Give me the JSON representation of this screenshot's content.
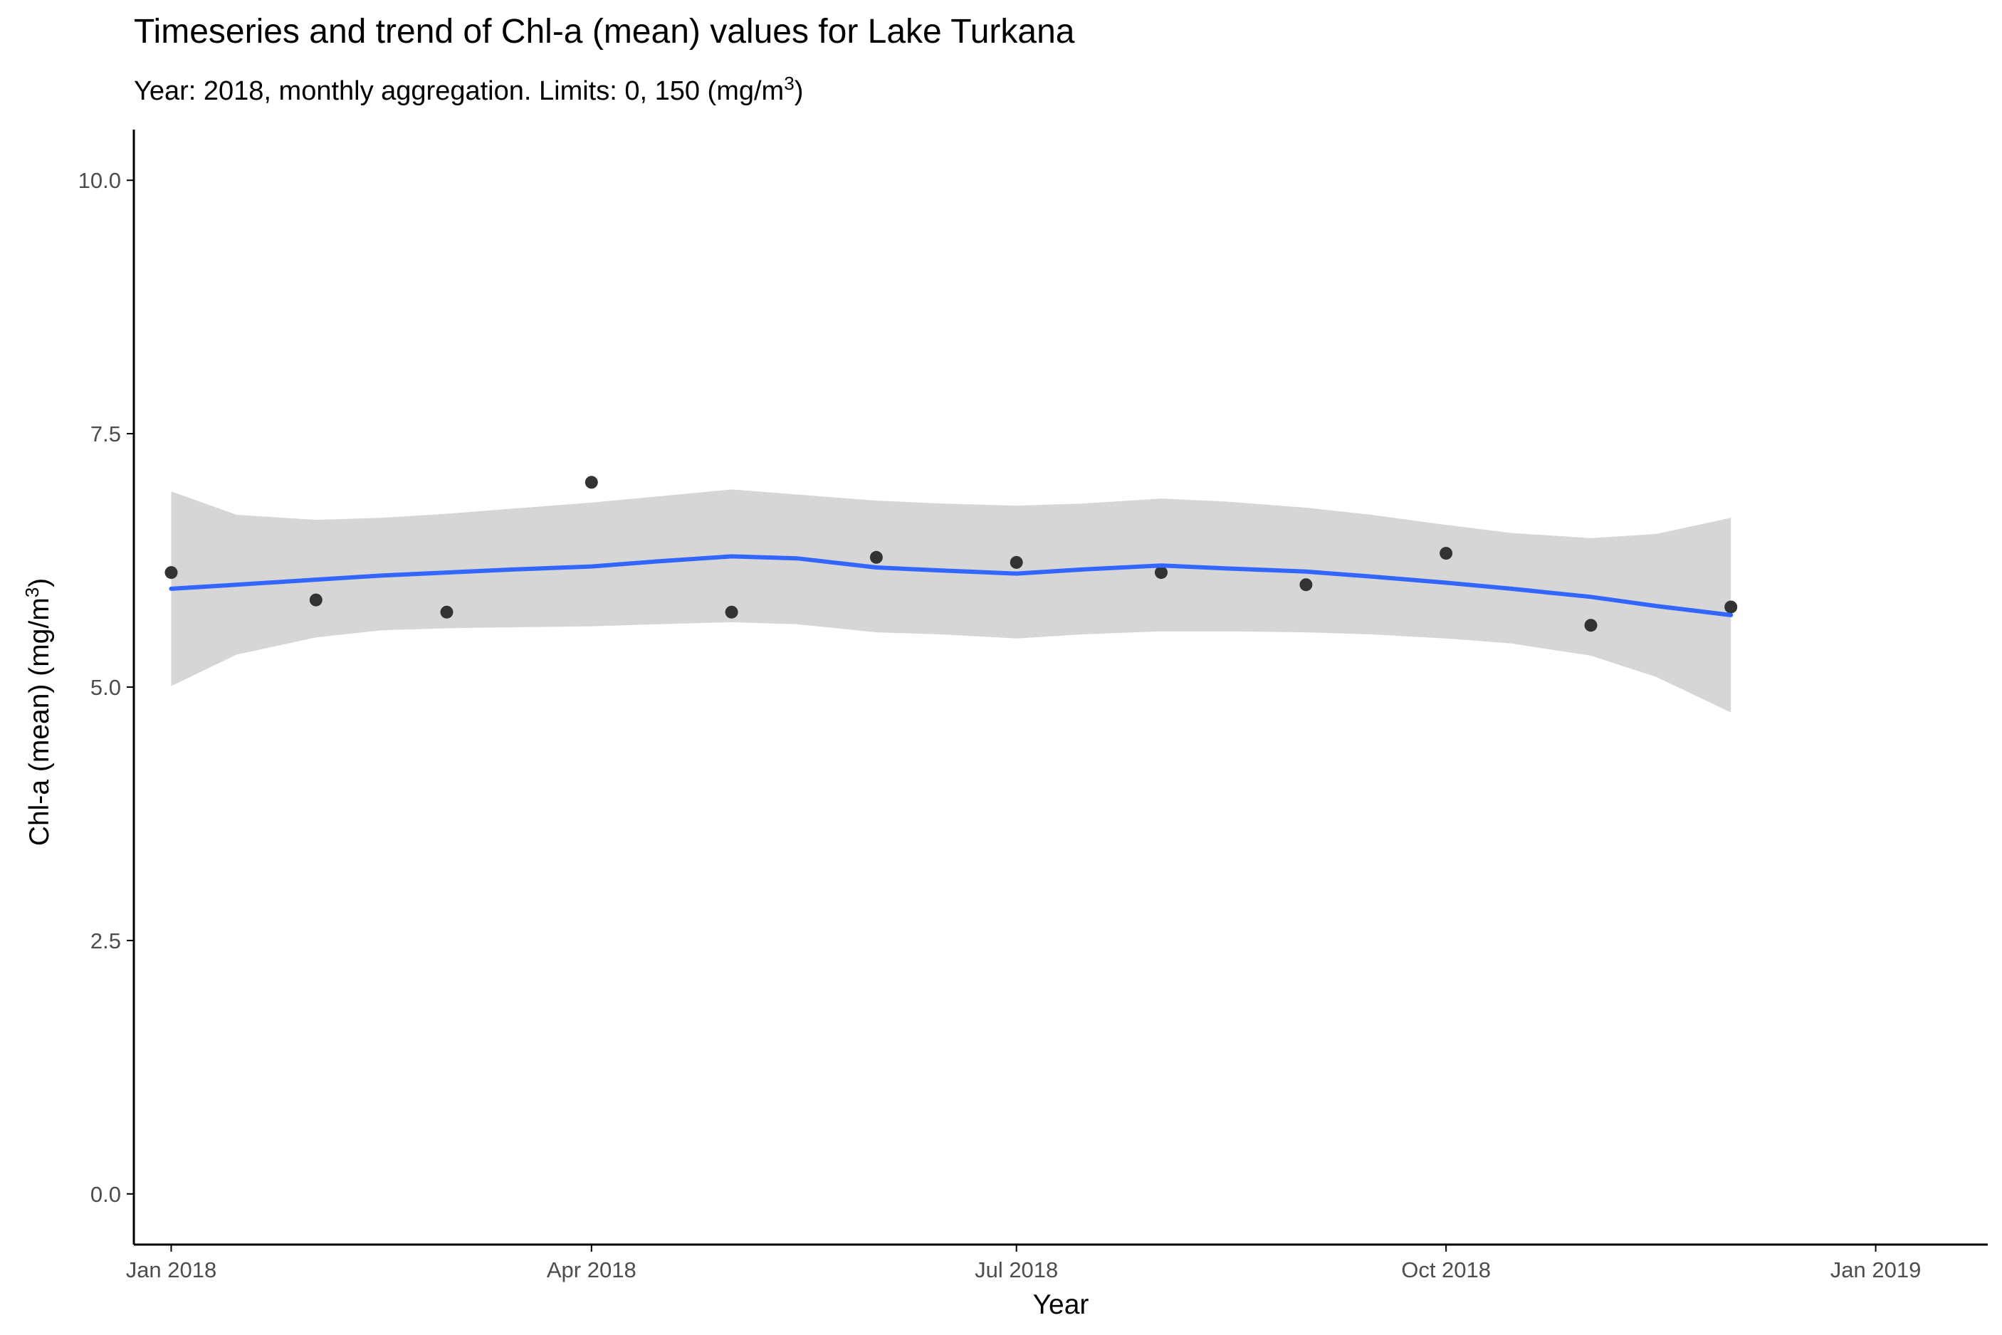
{
  "chart_data": {
    "type": "scatter",
    "title": "Timeseries and trend of Chl-a (mean) values for Lake Turkana",
    "subtitle": {
      "text": "Year: 2018, monthly aggregation. Limits: 0, 150 (mg/m",
      "superscript": "3",
      "suffix": ")"
    },
    "xlabel": "Year",
    "ylabel": {
      "text": "Chl-a (mean) (mg/m",
      "superscript": "3",
      "suffix": ")"
    },
    "xlim": [
      "2017-12-24",
      "2019-01-25"
    ],
    "ylim": [
      -0.5,
      10.5
    ],
    "x_ticks": [
      {
        "date": "2018-01-01",
        "label": "Jan 2018"
      },
      {
        "date": "2018-04-01",
        "label": "Apr 2018"
      },
      {
        "date": "2018-07-01",
        "label": "Jul 2018"
      },
      {
        "date": "2018-10-01",
        "label": "Oct 2018"
      },
      {
        "date": "2019-01-01",
        "label": "Jan 2019"
      }
    ],
    "y_ticks": [
      {
        "value": 0.0,
        "label": "0.0"
      },
      {
        "value": 2.5,
        "label": "2.5"
      },
      {
        "value": 5.0,
        "label": "5.0"
      },
      {
        "value": 7.5,
        "label": "7.5"
      },
      {
        "value": 10.0,
        "label": "10.0"
      }
    ],
    "grid": false,
    "points": {
      "x": [
        "2018-01-01",
        "2018-02-01",
        "2018-03-01",
        "2018-04-01",
        "2018-05-01",
        "2018-06-01",
        "2018-07-01",
        "2018-08-01",
        "2018-09-01",
        "2018-10-01",
        "2018-11-01",
        "2018-12-01"
      ],
      "y": [
        6.13,
        5.86,
        5.74,
        7.02,
        5.74,
        6.28,
        6.23,
        6.13,
        6.01,
        6.32,
        5.61,
        5.79
      ]
    },
    "trend": {
      "x": [
        "2018-01-01",
        "2018-01-15",
        "2018-02-01",
        "2018-02-15",
        "2018-03-01",
        "2018-03-15",
        "2018-04-01",
        "2018-04-15",
        "2018-05-01",
        "2018-05-15",
        "2018-06-01",
        "2018-06-15",
        "2018-07-01",
        "2018-07-15",
        "2018-08-01",
        "2018-08-15",
        "2018-09-01",
        "2018-09-15",
        "2018-10-01",
        "2018-10-15",
        "2018-11-01",
        "2018-11-15",
        "2018-12-01"
      ],
      "y": [
        5.97,
        6.01,
        6.06,
        6.1,
        6.13,
        6.16,
        6.19,
        6.24,
        6.29,
        6.27,
        6.18,
        6.15,
        6.12,
        6.16,
        6.2,
        6.17,
        6.14,
        6.09,
        6.03,
        5.97,
        5.89,
        5.8,
        5.71
      ],
      "lower": [
        5.01,
        5.32,
        5.49,
        5.56,
        5.58,
        5.59,
        5.6,
        5.62,
        5.64,
        5.62,
        5.54,
        5.52,
        5.48,
        5.52,
        5.55,
        5.55,
        5.54,
        5.52,
        5.48,
        5.43,
        5.31,
        5.1,
        4.75
      ],
      "upper": [
        6.93,
        6.7,
        6.65,
        6.67,
        6.71,
        6.76,
        6.82,
        6.88,
        6.95,
        6.9,
        6.84,
        6.81,
        6.79,
        6.81,
        6.86,
        6.83,
        6.77,
        6.7,
        6.6,
        6.52,
        6.47,
        6.51,
        6.67
      ]
    },
    "colors": {
      "point": "#333333",
      "trend_line": "#3366FF",
      "confidence_band": "#D6D6D6",
      "axis": "#000000"
    }
  }
}
